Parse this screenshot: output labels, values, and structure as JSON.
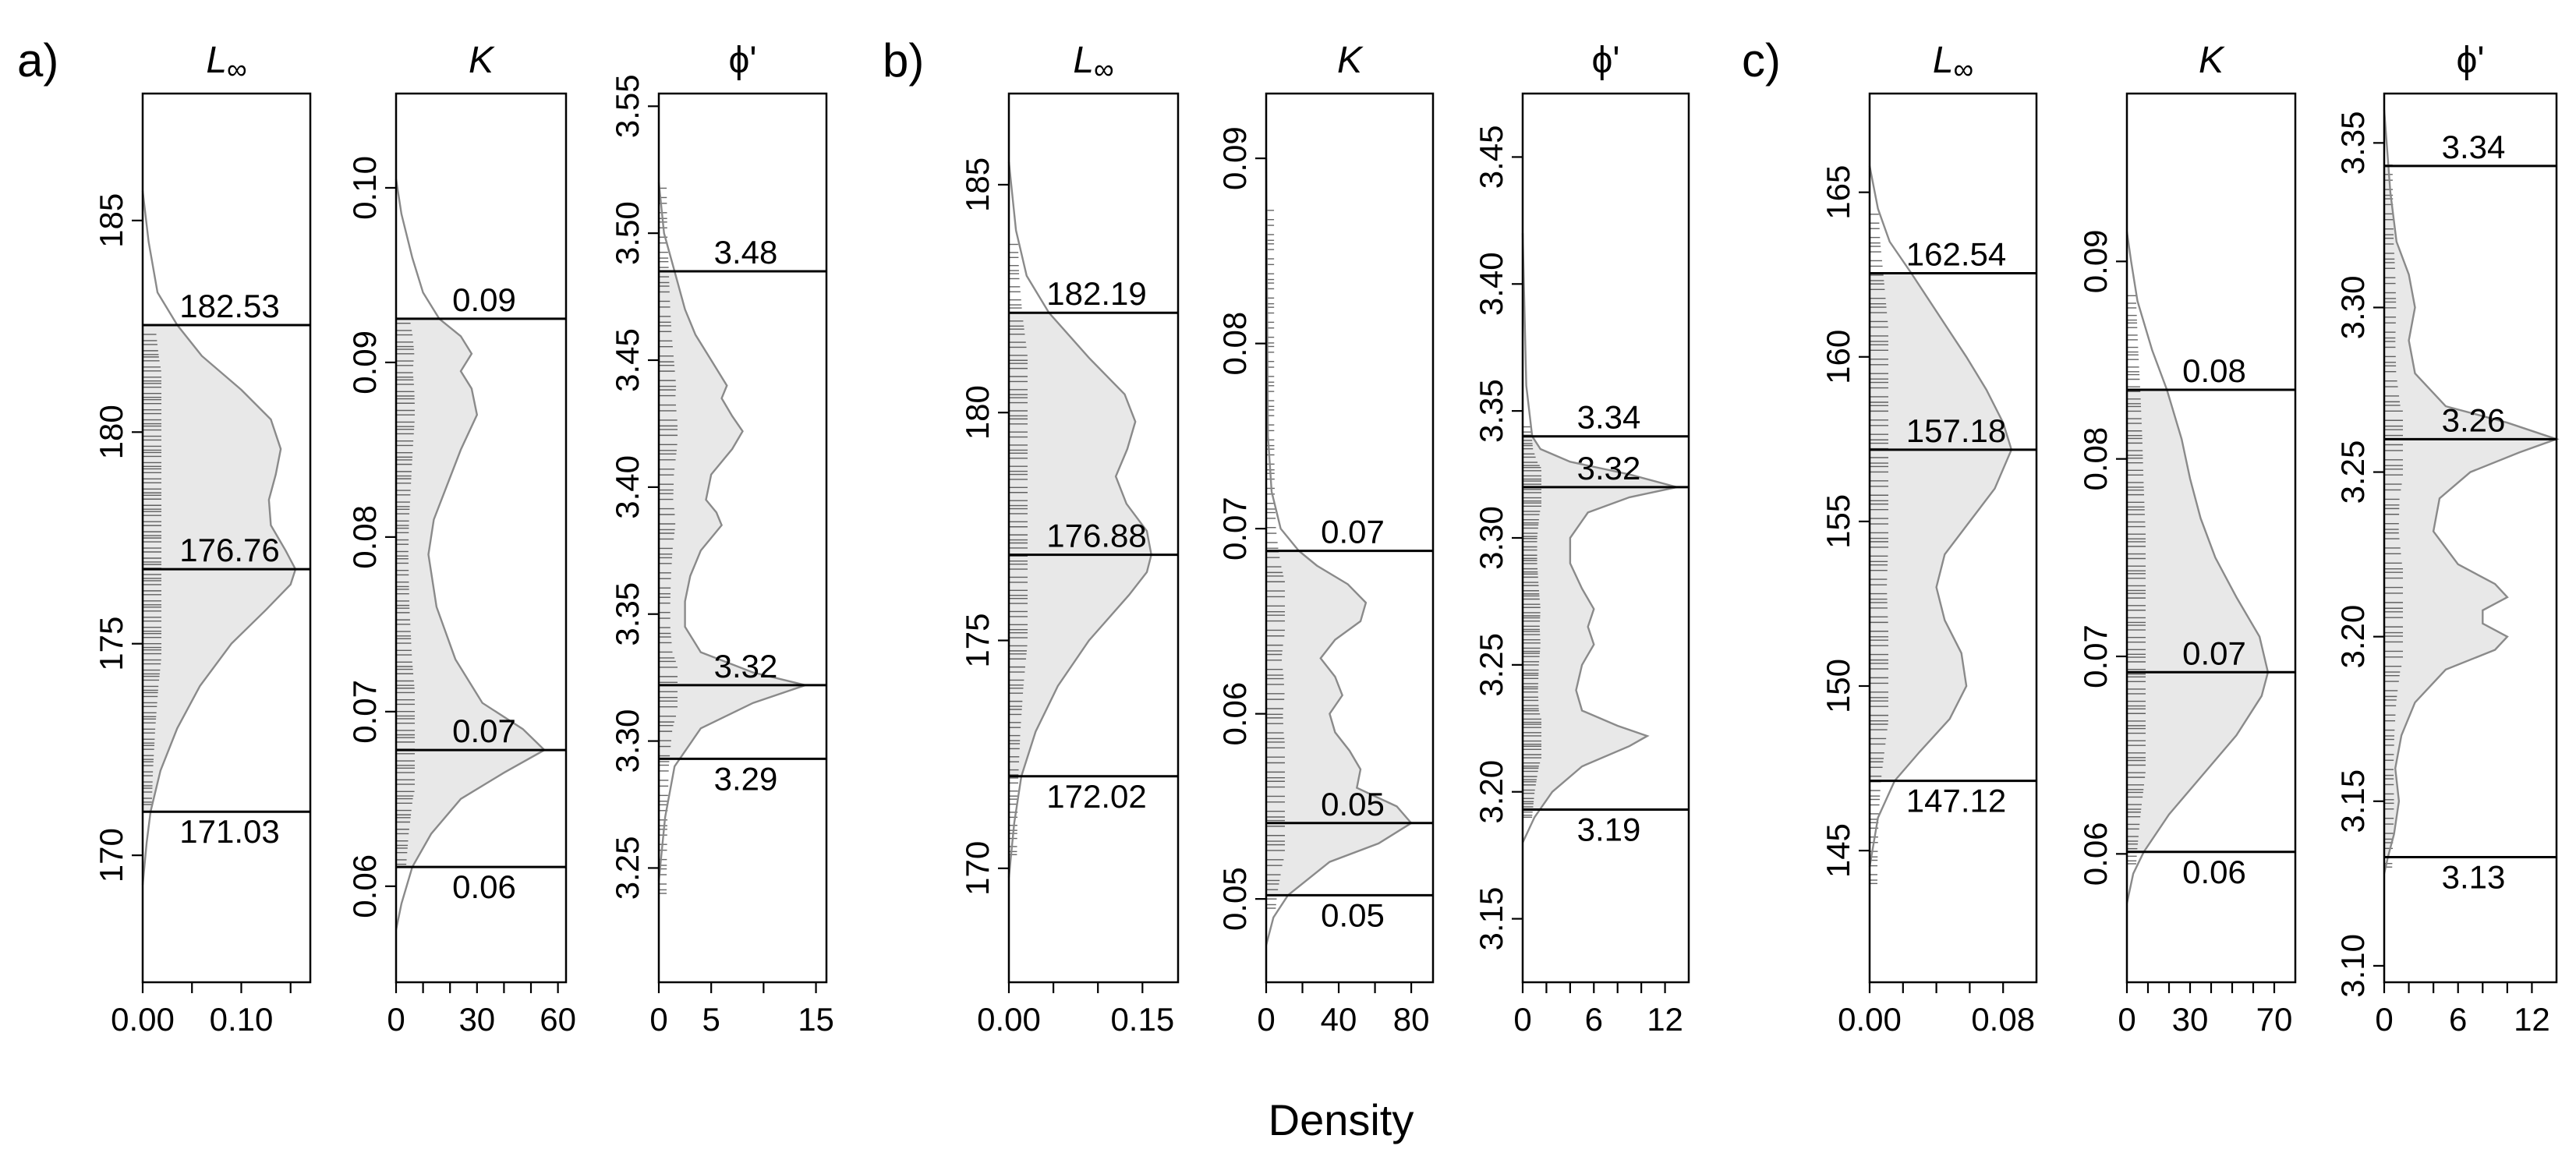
{
  "figure": {
    "x_label": "Density"
  },
  "chart_data": [
    {
      "type": "area",
      "group": "a)",
      "title": "L∞",
      "ylim": [
        167,
        188
      ],
      "yticks": [
        170,
        175,
        180,
        185
      ],
      "xlim": [
        0,
        0.17
      ],
      "xticks": [
        0,
        0.1
      ],
      "xtick_labels": [
        "0.00",
        "0.10"
      ],
      "xminor": [
        0.05,
        0.15
      ],
      "ann_lines": [
        182.53,
        176.76,
        171.03
      ],
      "ann_labels": [
        "182.53",
        "176.76",
        "171.03"
      ],
      "shade": [
        171.03,
        182.53
      ],
      "rug": [
        171.2,
        182.4
      ],
      "curve": [
        [
          169.3,
          0
        ],
        [
          170.3,
          0.004
        ],
        [
          171.03,
          0.008
        ],
        [
          172,
          0.018
        ],
        [
          173,
          0.035
        ],
        [
          174,
          0.058
        ],
        [
          175,
          0.09
        ],
        [
          175.8,
          0.125
        ],
        [
          176.4,
          0.15
        ],
        [
          176.76,
          0.155
        ],
        [
          177.2,
          0.145
        ],
        [
          177.8,
          0.13
        ],
        [
          178.4,
          0.128
        ],
        [
          179,
          0.135
        ],
        [
          179.6,
          0.14
        ],
        [
          180.3,
          0.13
        ],
        [
          181,
          0.1
        ],
        [
          181.8,
          0.06
        ],
        [
          182.53,
          0.035
        ],
        [
          183.3,
          0.015
        ],
        [
          184.5,
          0.006
        ],
        [
          185.7,
          0
        ]
      ]
    },
    {
      "type": "area",
      "group": "a)",
      "title": "K",
      "ylim": [
        0.0545,
        0.1054
      ],
      "yticks": [
        0.06,
        0.07,
        0.08,
        0.09,
        0.1
      ],
      "xlim": [
        0,
        63
      ],
      "xticks": [
        0,
        30,
        60
      ],
      "xtick_labels": [
        "0",
        "30",
        "60"
      ],
      "xminor": [
        10,
        20,
        40,
        50
      ],
      "ann_lines": [
        0.0925,
        0.0678,
        0.0611
      ],
      "ann_labels": [
        "0.09",
        "0.07",
        "0.06"
      ],
      "shade": [
        0.0611,
        0.0925
      ],
      "rug": [
        0.0611,
        0.0925
      ],
      "curve": [
        [
          0.0575,
          0
        ],
        [
          0.059,
          2
        ],
        [
          0.0611,
          6
        ],
        [
          0.063,
          13
        ],
        [
          0.065,
          24
        ],
        [
          0.0665,
          40
        ],
        [
          0.0678,
          55
        ],
        [
          0.069,
          47
        ],
        [
          0.0705,
          32
        ],
        [
          0.073,
          22
        ],
        [
          0.076,
          15
        ],
        [
          0.079,
          12
        ],
        [
          0.081,
          14
        ],
        [
          0.083,
          19
        ],
        [
          0.085,
          24
        ],
        [
          0.087,
          30
        ],
        [
          0.0885,
          28
        ],
        [
          0.0895,
          24
        ],
        [
          0.0905,
          28
        ],
        [
          0.0915,
          24
        ],
        [
          0.0925,
          16
        ],
        [
          0.094,
          10
        ],
        [
          0.096,
          6
        ],
        [
          0.0985,
          2
        ],
        [
          0.1005,
          0
        ]
      ]
    },
    {
      "type": "area",
      "group": "a)",
      "title": "ϕ'",
      "ylim": [
        3.205,
        3.555
      ],
      "yticks": [
        3.25,
        3.3,
        3.35,
        3.4,
        3.45,
        3.5,
        3.55
      ],
      "xlim": [
        0,
        16
      ],
      "xticks": [
        0,
        5,
        15
      ],
      "xtick_labels": [
        "0",
        "5",
        "15"
      ],
      "xminor": [
        10
      ],
      "ann_lines": [
        3.485,
        3.322,
        3.293
      ],
      "ann_labels": [
        "3.48",
        "3.32",
        "3.29"
      ],
      "shade": [
        3.293,
        3.485
      ],
      "rug": [
        3.24,
        3.52
      ],
      "curve": [
        [
          3.245,
          0
        ],
        [
          3.27,
          0.6
        ],
        [
          3.29,
          1.5
        ],
        [
          3.305,
          4
        ],
        [
          3.315,
          9
        ],
        [
          3.322,
          14
        ],
        [
          3.327,
          9
        ],
        [
          3.335,
          4
        ],
        [
          3.345,
          2.5
        ],
        [
          3.355,
          2.5
        ],
        [
          3.365,
          3
        ],
        [
          3.375,
          4
        ],
        [
          3.385,
          6
        ],
        [
          3.39,
          5.5
        ],
        [
          3.395,
          4.5
        ],
        [
          3.405,
          5
        ],
        [
          3.415,
          7
        ],
        [
          3.422,
          8
        ],
        [
          3.428,
          7
        ],
        [
          3.435,
          6
        ],
        [
          3.44,
          6.5
        ],
        [
          3.45,
          5
        ],
        [
          3.46,
          3.5
        ],
        [
          3.47,
          2.5
        ],
        [
          3.485,
          1.5
        ],
        [
          3.5,
          0.5
        ],
        [
          3.52,
          0
        ]
      ]
    },
    {
      "type": "area",
      "group": "b)",
      "title": "L∞",
      "ylim": [
        167.5,
        187
      ],
      "yticks": [
        170,
        175,
        180,
        185
      ],
      "xlim": [
        0,
        0.19
      ],
      "xticks": [
        0,
        0.15
      ],
      "xtick_labels": [
        "0.00",
        "0.15"
      ],
      "xminor": [
        0.05,
        0.1
      ],
      "ann_lines": [
        182.19,
        176.88,
        172.02
      ],
      "ann_labels": [
        "182.19",
        "176.88",
        "172.02"
      ],
      "shade": [
        172.02,
        182.19
      ],
      "rug": [
        170.3,
        183.8
      ],
      "curve": [
        [
          169.8,
          0
        ],
        [
          171,
          0.006
        ],
        [
          172.02,
          0.014
        ],
        [
          173,
          0.03
        ],
        [
          174,
          0.055
        ],
        [
          175,
          0.09
        ],
        [
          176,
          0.135
        ],
        [
          176.5,
          0.155
        ],
        [
          176.88,
          0.16
        ],
        [
          177.4,
          0.155
        ],
        [
          178,
          0.132
        ],
        [
          178.6,
          0.12
        ],
        [
          179.2,
          0.133
        ],
        [
          179.8,
          0.142
        ],
        [
          180.4,
          0.13
        ],
        [
          181.2,
          0.09
        ],
        [
          182.19,
          0.045
        ],
        [
          183,
          0.02
        ],
        [
          184,
          0.008
        ],
        [
          185.5,
          0
        ]
      ]
    },
    {
      "type": "area",
      "group": "b)",
      "title": "K",
      "ylim": [
        0.0455,
        0.0935
      ],
      "yticks": [
        0.05,
        0.06,
        0.07,
        0.08,
        0.09
      ],
      "xlim": [
        0,
        92
      ],
      "xticks": [
        0,
        40,
        80
      ],
      "xtick_labels": [
        "0",
        "40",
        "80"
      ],
      "xminor": [
        20,
        60
      ],
      "ann_lines": [
        0.0688,
        0.0541,
        0.0502
      ],
      "ann_labels": [
        "0.07",
        "0.05",
        "0.05"
      ],
      "shade": [
        0.0502,
        0.0688
      ],
      "rug": [
        0.0495,
        0.0875
      ],
      "curve": [
        [
          0.0475,
          0
        ],
        [
          0.049,
          4
        ],
        [
          0.0502,
          12
        ],
        [
          0.052,
          35
        ],
        [
          0.053,
          62
        ],
        [
          0.0541,
          80
        ],
        [
          0.055,
          72
        ],
        [
          0.056,
          50
        ],
        [
          0.057,
          52
        ],
        [
          0.058,
          46
        ],
        [
          0.059,
          38
        ],
        [
          0.06,
          35
        ],
        [
          0.061,
          42
        ],
        [
          0.062,
          38
        ],
        [
          0.063,
          30
        ],
        [
          0.064,
          38
        ],
        [
          0.065,
          52
        ],
        [
          0.066,
          55
        ],
        [
          0.067,
          45
        ],
        [
          0.068,
          28
        ],
        [
          0.0688,
          18
        ],
        [
          0.07,
          8
        ],
        [
          0.072,
          3
        ],
        [
          0.075,
          1
        ],
        [
          0.09,
          0
        ]
      ]
    },
    {
      "type": "area",
      "group": "b)",
      "title": "ϕ'",
      "ylim": [
        3.125,
        3.475
      ],
      "yticks": [
        3.15,
        3.2,
        3.25,
        3.3,
        3.35,
        3.4,
        3.45
      ],
      "xlim": [
        0,
        14
      ],
      "xticks": [
        0,
        6,
        12
      ],
      "xtick_labels": [
        "0",
        "6",
        "12"
      ],
      "xminor": [
        2,
        4,
        8,
        10
      ],
      "ann_lines": [
        3.34,
        3.32,
        3.193
      ],
      "ann_labels": [
        "3.34",
        "3.32",
        "3.19"
      ],
      "shade": [
        3.193,
        3.34
      ],
      "rug": [
        3.19,
        3.345
      ],
      "curve": [
        [
          3.18,
          0
        ],
        [
          3.19,
          1
        ],
        [
          3.2,
          2.5
        ],
        [
          3.21,
          5
        ],
        [
          3.218,
          9
        ],
        [
          3.222,
          10.5
        ],
        [
          3.226,
          8
        ],
        [
          3.232,
          5
        ],
        [
          3.24,
          4.5
        ],
        [
          3.25,
          5
        ],
        [
          3.258,
          6
        ],
        [
          3.265,
          5.5
        ],
        [
          3.272,
          6
        ],
        [
          3.28,
          5
        ],
        [
          3.29,
          4
        ],
        [
          3.3,
          4
        ],
        [
          3.31,
          5.5
        ],
        [
          3.316,
          9
        ],
        [
          3.32,
          13
        ],
        [
          3.325,
          9
        ],
        [
          3.33,
          4
        ],
        [
          3.335,
          1.5
        ],
        [
          3.34,
          0.8
        ],
        [
          3.36,
          0.3
        ],
        [
          3.42,
          0
        ]
      ]
    },
    {
      "type": "area",
      "group": "c)",
      "title": "L∞",
      "ylim": [
        141,
        168
      ],
      "yticks": [
        145,
        150,
        155,
        160,
        165
      ],
      "xlim": [
        0,
        0.1
      ],
      "xticks": [
        0,
        0.08
      ],
      "xtick_labels": [
        "0.00",
        "0.08"
      ],
      "xminor": [
        0.02,
        0.04,
        0.06
      ],
      "ann_lines": [
        162.54,
        157.18,
        147.12
      ],
      "ann_labels": [
        "162.54",
        "157.18",
        "147.12"
      ],
      "shade": [
        147.12,
        162.54
      ],
      "rug": [
        144,
        164.5
      ],
      "curve": [
        [
          144.5,
          0
        ],
        [
          146,
          0.005
        ],
        [
          147.12,
          0.015
        ],
        [
          148,
          0.03
        ],
        [
          149,
          0.048
        ],
        [
          150,
          0.058
        ],
        [
          151,
          0.055
        ],
        [
          152,
          0.045
        ],
        [
          153,
          0.04
        ],
        [
          154,
          0.045
        ],
        [
          155,
          0.06
        ],
        [
          156,
          0.075
        ],
        [
          157.18,
          0.085
        ],
        [
          158,
          0.08
        ],
        [
          159,
          0.07
        ],
        [
          160,
          0.058
        ],
        [
          161,
          0.045
        ],
        [
          162.54,
          0.025
        ],
        [
          163.5,
          0.012
        ],
        [
          164.5,
          0.005
        ],
        [
          165.8,
          0
        ]
      ]
    },
    {
      "type": "area",
      "group": "c)",
      "title": "K",
      "ylim": [
        0.0535,
        0.0985
      ],
      "yticks": [
        0.06,
        0.07,
        0.08,
        0.09
      ],
      "xlim": [
        0,
        80
      ],
      "xticks": [
        0,
        30,
        70
      ],
      "xtick_labels": [
        "0",
        "30",
        "70"
      ],
      "xminor": [
        10,
        20,
        40,
        50,
        60
      ],
      "ann_lines": [
        0.0835,
        0.0692,
        0.0601
      ],
      "ann_labels": [
        "0.08",
        "0.07",
        "0.06"
      ],
      "shade": [
        0.0601,
        0.0835
      ],
      "rug": [
        0.0595,
        0.0885
      ],
      "curve": [
        [
          0.0575,
          0
        ],
        [
          0.059,
          3
        ],
        [
          0.0601,
          8
        ],
        [
          0.062,
          20
        ],
        [
          0.064,
          36
        ],
        [
          0.066,
          52
        ],
        [
          0.068,
          64
        ],
        [
          0.0692,
          67
        ],
        [
          0.071,
          63
        ],
        [
          0.073,
          52
        ],
        [
          0.075,
          42
        ],
        [
          0.077,
          35
        ],
        [
          0.079,
          30
        ],
        [
          0.081,
          26
        ],
        [
          0.0835,
          19
        ],
        [
          0.0855,
          12
        ],
        [
          0.088,
          5
        ],
        [
          0.09,
          2
        ],
        [
          0.0915,
          0
        ]
      ]
    },
    {
      "type": "area",
      "group": "c)",
      "title": "ϕ'",
      "ylim": [
        3.095,
        3.365
      ],
      "yticks": [
        3.1,
        3.15,
        3.2,
        3.25,
        3.3,
        3.35
      ],
      "xlim": [
        0,
        14
      ],
      "xticks": [
        0,
        6,
        12
      ],
      "xtick_labels": [
        "0",
        "6",
        "12"
      ],
      "xminor": [
        2,
        4,
        8,
        10
      ],
      "ann_lines": [
        3.343,
        3.26,
        3.133
      ],
      "ann_labels": [
        "3.34",
        "3.26",
        "3.13"
      ],
      "shade": [
        3.133,
        3.343
      ],
      "rug": [
        3.13,
        3.345
      ],
      "curve": [
        [
          3.128,
          0
        ],
        [
          3.133,
          0.3
        ],
        [
          3.14,
          0.8
        ],
        [
          3.15,
          1.2
        ],
        [
          3.16,
          0.9
        ],
        [
          3.17,
          1.4
        ],
        [
          3.18,
          2.5
        ],
        [
          3.19,
          5
        ],
        [
          3.196,
          9
        ],
        [
          3.2,
          10
        ],
        [
          3.204,
          8
        ],
        [
          3.208,
          8
        ],
        [
          3.212,
          10
        ],
        [
          3.216,
          9
        ],
        [
          3.222,
          6
        ],
        [
          3.232,
          4
        ],
        [
          3.242,
          4.5
        ],
        [
          3.25,
          7
        ],
        [
          3.256,
          11
        ],
        [
          3.26,
          14
        ],
        [
          3.265,
          10
        ],
        [
          3.27,
          5
        ],
        [
          3.28,
          2.5
        ],
        [
          3.29,
          2
        ],
        [
          3.3,
          2.5
        ],
        [
          3.31,
          2
        ],
        [
          3.32,
          1
        ],
        [
          3.335,
          0.5
        ],
        [
          3.36,
          0
        ]
      ]
    }
  ]
}
